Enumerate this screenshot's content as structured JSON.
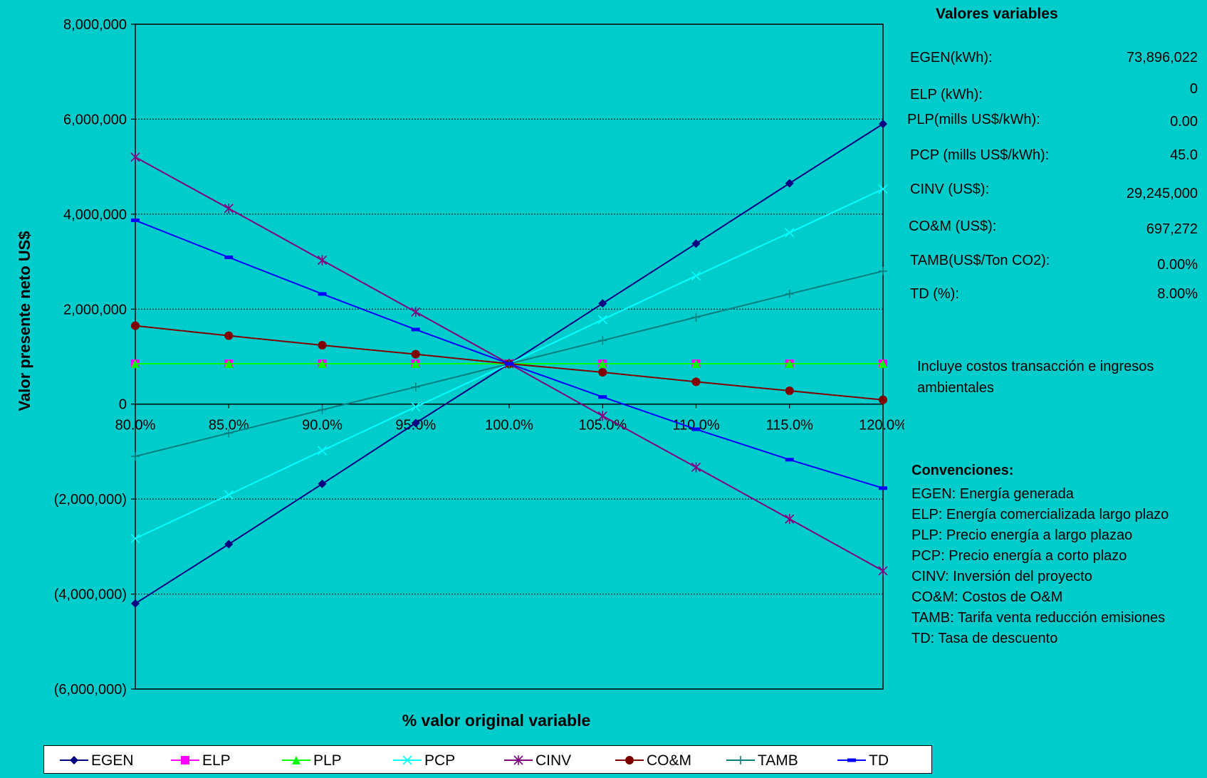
{
  "chart_data": {
    "type": "line",
    "xlabel": "% valor original variable",
    "ylabel": "Valor presente neto  US$",
    "x": [
      "80.0%",
      "85.0%",
      "90.0%",
      "95.0%",
      "100.0%",
      "105.0%",
      "110.0%",
      "115.0%",
      "120.0%"
    ],
    "ylim": [
      -6000000,
      8000000
    ],
    "yticks": [
      8000000,
      6000000,
      4000000,
      2000000,
      0,
      -2000000,
      -4000000,
      -6000000
    ],
    "ytick_labels": [
      "8,000,000",
      "6,000,000",
      "4,000,000",
      "2,000,000",
      "0",
      "(2,000,000)",
      "(4,000,000)",
      "(6,000,000)"
    ],
    "grid": "horizontal dotted",
    "legend": "bottom",
    "series": [
      {
        "name": "EGEN",
        "color": "#000080",
        "marker": "diamond",
        "values": [
          -4200000,
          -2950000,
          -1680000,
          -400000,
          850000,
          2120000,
          3380000,
          4650000,
          5900000
        ]
      },
      {
        "name": "ELP",
        "color": "#FF00FF",
        "marker": "square",
        "values": [
          850000,
          850000,
          850000,
          850000,
          850000,
          850000,
          850000,
          850000,
          850000
        ]
      },
      {
        "name": "PLP",
        "color": "#00FF00",
        "marker": "triangle",
        "values": [
          850000,
          850000,
          850000,
          850000,
          850000,
          850000,
          850000,
          850000,
          850000
        ]
      },
      {
        "name": "PCP",
        "color": "#00FFFF",
        "marker": "x",
        "values": [
          -2830000,
          -1910000,
          -980000,
          -60000,
          850000,
          1780000,
          2700000,
          3610000,
          4530000
        ]
      },
      {
        "name": "CINV",
        "color": "#800080",
        "marker": "star",
        "values": [
          5200000,
          4120000,
          3030000,
          1940000,
          850000,
          -250000,
          -1330000,
          -2420000,
          -3510000
        ]
      },
      {
        "name": "CO&M",
        "color": "#800000",
        "marker": "circle",
        "values": [
          1650000,
          1440000,
          1240000,
          1050000,
          850000,
          670000,
          470000,
          280000,
          90000
        ]
      },
      {
        "name": "TAMB",
        "color": "#008080",
        "marker": "plus",
        "values": [
          -1100000,
          -610000,
          -120000,
          360000,
          850000,
          1340000,
          1830000,
          2320000,
          2800000
        ]
      },
      {
        "name": "TD",
        "color": "#0000FF",
        "marker": "dash",
        "values": [
          3870000,
          3090000,
          2320000,
          1570000,
          850000,
          150000,
          -530000,
          -1170000,
          -1770000
        ]
      }
    ]
  },
  "panel": {
    "title": "Valores variables",
    "variables": [
      {
        "label": "EGEN(kWh):",
        "value": "73,896,022"
      },
      {
        "label": "ELP (kWh):",
        "value": "0"
      },
      {
        "label": "PLP(mills US$/kWh):",
        "value": "0.00"
      },
      {
        "label": "PCP (mills US$/kWh):",
        "value": "45.0"
      },
      {
        "label": "CINV (US$):",
        "value": "29,245,000"
      },
      {
        "label": "CO&M (US$):",
        "value": "697,272"
      },
      {
        "label": "TAMB(US$/Ton CO2):",
        "value": "0.00%"
      },
      {
        "label": "TD (%):",
        "value": "8.00%"
      }
    ],
    "note": "Incluye costos transacción e ingresos ambientales",
    "conventions_title": "Convenciones:",
    "conventions": [
      "EGEN: Energía generada",
      "ELP: Energía comercializada largo plazo",
      "PLP: Precio energía a largo plazao",
      "PCP: Precio energía a corto plazo",
      "CINV:  Inversión del proyecto",
      "CO&M: Costos de O&M",
      "TAMB: Tarifa venta reducción emisiones",
      "TD: Tasa de descuento"
    ]
  },
  "colors": {
    "background": "#00CCCC",
    "plot_area": "#00CCCC",
    "gridline": "#000000"
  }
}
